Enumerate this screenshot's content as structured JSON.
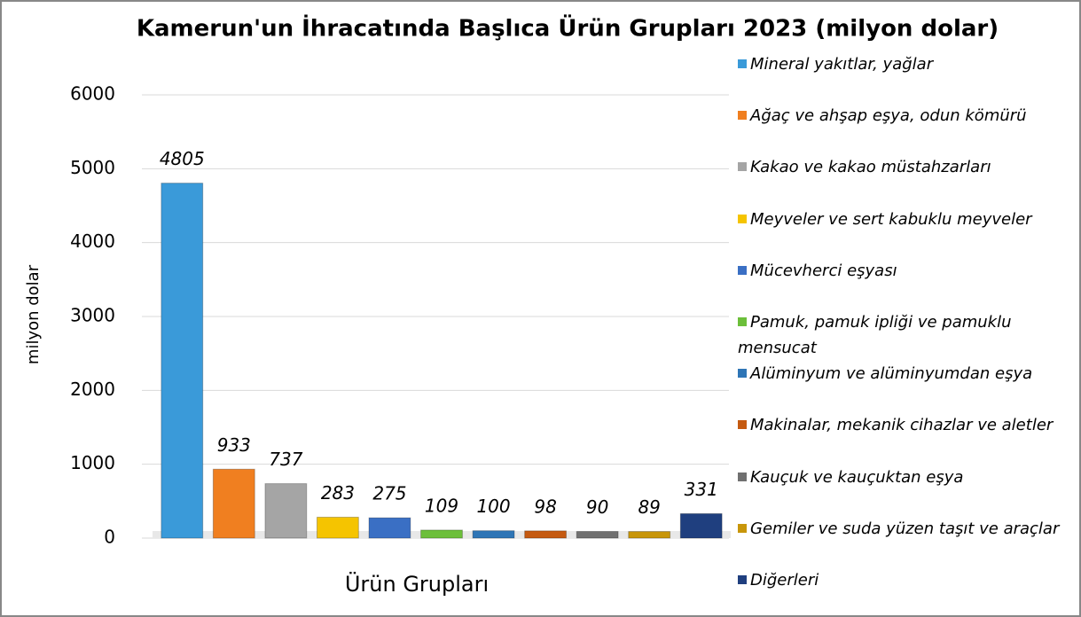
{
  "chart_data": {
    "type": "bar",
    "title": "Kamerun'un İhracatında Başlıca Ürün Grupları 2023 (milyon dolar)",
    "xlabel": "Ürün Grupları",
    "ylabel": "milyon dolar",
    "categories": [
      "Mineral yakıtlar, yağlar",
      "Ağaç ve ahşap eşya, odun kömürü",
      "Kakao ve kakao müstahzarları",
      "Meyveler ve sert kabuklu meyveler",
      "Mücevherci eşyası",
      "Pamuk, pamuk ipliği ve pamuklu mensucat",
      "Alüminyum ve alüminyumdan eşya",
      "Makinalar, mekanik cihazlar ve aletler",
      "Kauçuk ve kauçuktan eşya",
      "Gemiler ve suda yüzen taşıt ve araçlar",
      "Diğerleri"
    ],
    "values": [
      4805,
      933,
      737,
      283,
      275,
      109,
      100,
      98,
      90,
      89,
      331
    ],
    "colors": [
      "#3a9ad9",
      "#f07f20",
      "#a5a5a5",
      "#f5c400",
      "#3a6fc4",
      "#6cbf3a",
      "#2e75b6",
      "#c55a11",
      "#707070",
      "#c8960a",
      "#1f3f7f"
    ],
    "ylim": [
      0,
      6000
    ],
    "yticks": [
      0,
      1000,
      2000,
      3000,
      4000,
      5000,
      6000
    ],
    "grid": true,
    "legend": "right"
  }
}
